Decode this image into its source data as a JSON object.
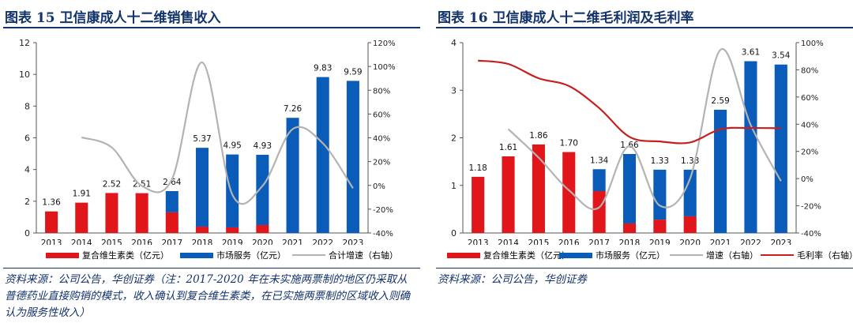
{
  "colors": {
    "red": "#e0161b",
    "blue": "#0a5cb8",
    "gray": "#b3b3b3",
    "margin_line": "#c81e1e",
    "title": "#13336b"
  },
  "charts": [
    {
      "title": "图表 15  卫信康成人十二维销售收入",
      "source": "资料来源：公司公告，华创证券（注：2017-2020 年在未实施两票制的地区仍采取从普德药业直接购销的模式，收入确认到复合维生素类，在已实施两票制的区域收入则确认为服务性收入）",
      "legend": [
        "复合维生素类（亿元）",
        "市场服务（亿元）",
        "合计增速（右轴）"
      ]
    },
    {
      "title": "图表 16  卫信康成人十二维毛利润及毛利率",
      "source": "资料来源：公司公告，华创证券",
      "legend": [
        "复合维生素类（亿元）",
        "市场服务（亿元）",
        "增速（右轴）",
        "毛利率（右轴）"
      ]
    }
  ],
  "chart_data": [
    {
      "type": "bar",
      "stacked": true,
      "categories": [
        "2013",
        "2014",
        "2015",
        "2016",
        "2017",
        "2018",
        "2019",
        "2020",
        "2021",
        "2022",
        "2023"
      ],
      "series": [
        {
          "name": "复合维生素类（亿元）",
          "values": [
            1.36,
            1.91,
            2.52,
            2.51,
            1.3,
            0.4,
            0.35,
            0.5,
            0,
            0,
            0
          ]
        },
        {
          "name": "市场服务（亿元）",
          "values": [
            0,
            0,
            0,
            0,
            1.34,
            4.97,
            4.6,
            4.43,
            7.26,
            9.83,
            9.59
          ]
        },
        {
          "name": "合计增速（右轴）",
          "type": "line",
          "axis": "right",
          "values": [
            null,
            40.4,
            31.9,
            -0.4,
            5.2,
            103.4,
            -7.8,
            -0.4,
            47.3,
            35.4,
            -2.4
          ]
        }
      ],
      "data_labels": [
        "1.36",
        "1.91",
        "2.52",
        "2.51",
        "2.64",
        "5.37",
        "4.95",
        "4.93",
        "7.26",
        "9.83",
        "9.59"
      ],
      "y_ticks": [
        "0",
        "2",
        "4",
        "6",
        "8",
        "10",
        "12"
      ],
      "y2_ticks": [
        "-40%",
        "-20%",
        "0%",
        "20%",
        "40%",
        "60%",
        "80%",
        "100%",
        "120%"
      ],
      "ylim": [
        0,
        12
      ],
      "y2lim": [
        -40,
        120
      ]
    },
    {
      "type": "bar",
      "stacked": true,
      "categories": [
        "2013",
        "2014",
        "2015",
        "2016",
        "2017",
        "2018",
        "2019",
        "2020",
        "2021",
        "2022",
        "2023"
      ],
      "series": [
        {
          "name": "复合维生素类（亿元）",
          "values": [
            1.18,
            1.61,
            1.86,
            1.7,
            0.88,
            0.2,
            0.28,
            0.35,
            0,
            0,
            0
          ]
        },
        {
          "name": "市场服务（亿元）",
          "values": [
            0,
            0,
            0,
            0,
            0.46,
            1.46,
            1.05,
            0.98,
            2.59,
            3.61,
            3.54
          ]
        },
        {
          "name": "增速（右轴）",
          "type": "line",
          "axis": "right",
          "values": [
            null,
            36.4,
            15.5,
            -8.6,
            -21.2,
            23.9,
            -19.9,
            0,
            94.7,
            39.4,
            -1.9
          ]
        },
        {
          "name": "毛利率（右轴）",
          "type": "line",
          "axis": "right",
          "values": [
            86.8,
            84.3,
            73.8,
            68.1,
            51.9,
            30.7,
            27.3,
            26.6,
            36.3,
            37.2,
            37.0
          ]
        }
      ],
      "data_labels": [
        "1.18",
        "1.61",
        "1.86",
        "1.70",
        "1.34",
        "1.66",
        "1.33",
        "1.33",
        "2.59",
        "3.61",
        "3.54"
      ],
      "y_ticks": [
        "0",
        "1",
        "2",
        "3",
        "4"
      ],
      "y2_ticks": [
        "-40%",
        "-20%",
        "0%",
        "20%",
        "40%",
        "60%",
        "80%",
        "100%"
      ],
      "ylim": [
        0,
        4
      ],
      "y2lim": [
        -40,
        100
      ]
    }
  ]
}
